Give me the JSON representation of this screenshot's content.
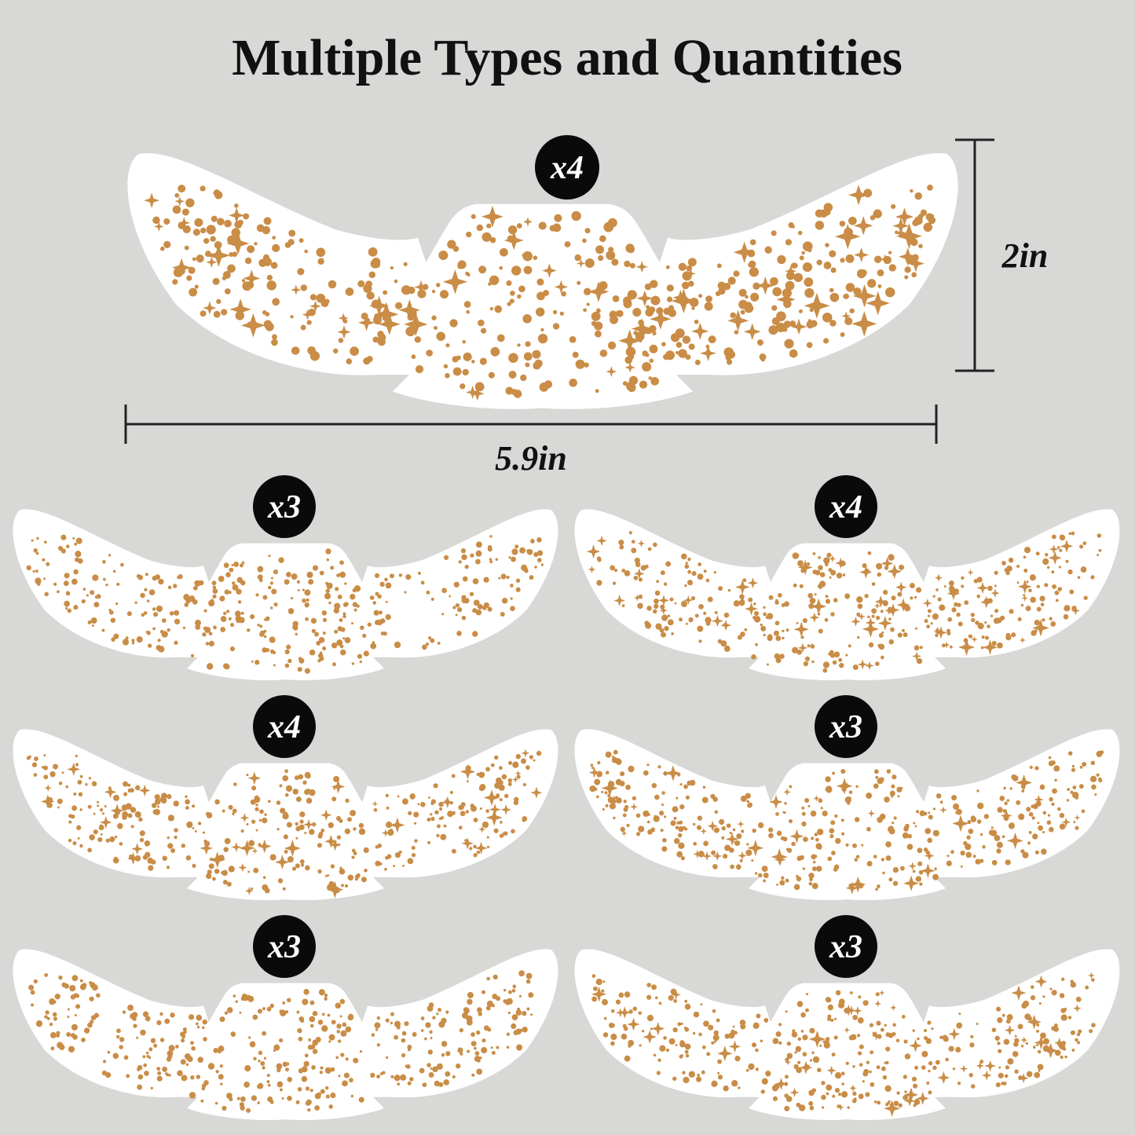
{
  "title": "Multiple Types and Quantities",
  "main_sticker": {
    "quantity": "x4",
    "height": "2in",
    "width": "5.9in"
  },
  "stickers": [
    {
      "quantity": "x3"
    },
    {
      "quantity": "x4"
    },
    {
      "quantity": "x4"
    },
    {
      "quantity": "x3"
    },
    {
      "quantity": "x3"
    },
    {
      "quantity": "x3"
    }
  ]
}
